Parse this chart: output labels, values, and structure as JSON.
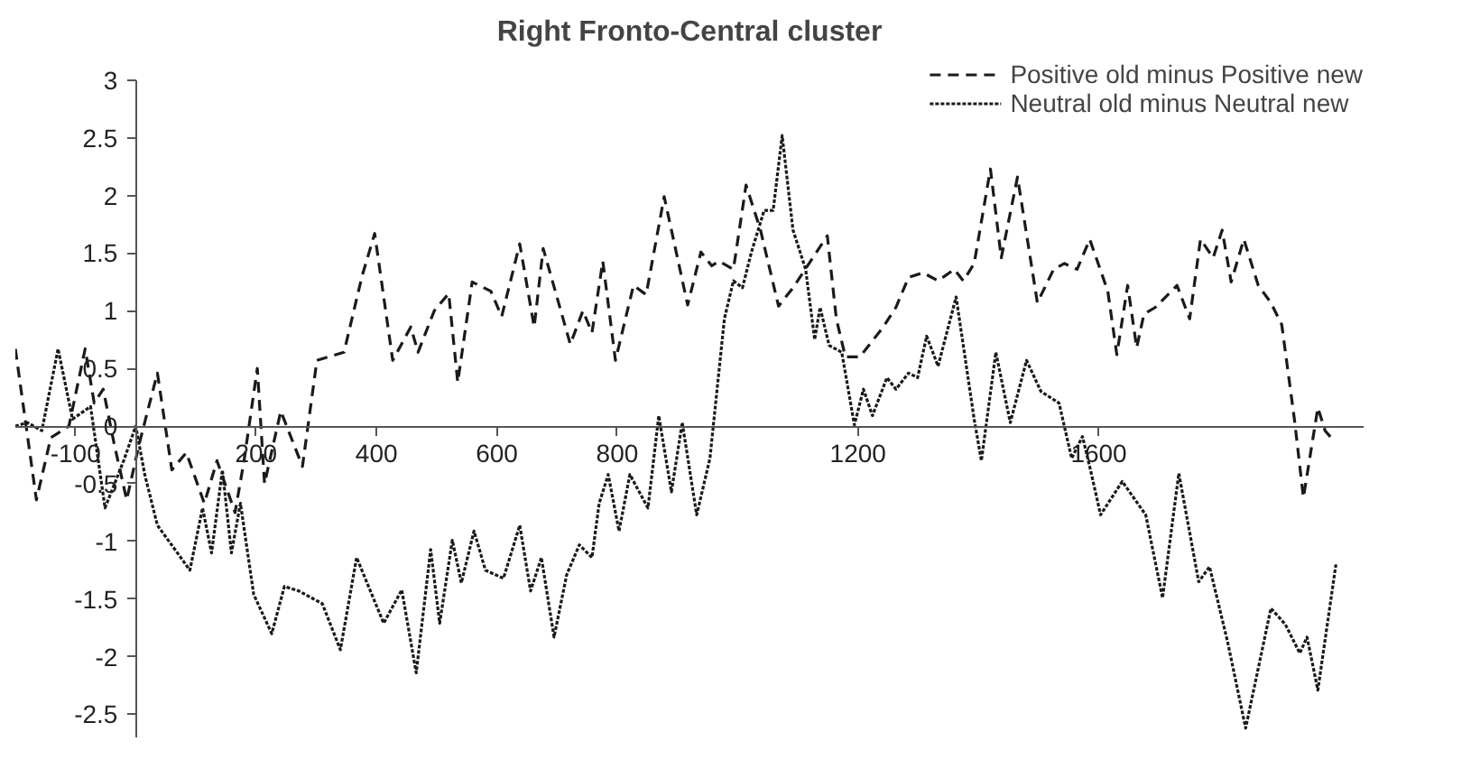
{
  "chart_data": {
    "type": "line",
    "title": "Right Fronto-Central cluster",
    "xlim": [
      -200,
      2040
    ],
    "ylim": [
      -2.7,
      3
    ],
    "xticks": [
      -100,
      200,
      400,
      600,
      800,
      1200,
      1600
    ],
    "yticks": [
      -2.5,
      -2,
      -1.5,
      -1,
      -0.5,
      0,
      0.5,
      1,
      1.5,
      2,
      2.5,
      3
    ],
    "grid": false,
    "legend": "top right",
    "series": [
      {
        "name": "Positive old minus Positive new",
        "color": "#1a1a1a",
        "line_style": "dashed",
        "x": [
          -200,
          -165,
          -141,
          -111,
          -84,
          -69,
          -54,
          -36,
          -15,
          6,
          36,
          60,
          84,
          114,
          135,
          165,
          180,
          202,
          214,
          241,
          277,
          301,
          346,
          376,
          397,
          427,
          457,
          469,
          496,
          520,
          535,
          559,
          590,
          608,
          638,
          662,
          677,
          722,
          743,
          758,
          776,
          797,
          827,
          848,
          878,
          917,
          939,
          957,
          969,
          993,
          1014,
          1038,
          1068,
          1092,
          1149,
          1164,
          1179,
          1203,
          1242,
          1263,
          1284,
          1308,
          1333,
          1360,
          1375,
          1393,
          1420,
          1438,
          1465,
          1498,
          1525,
          1543,
          1564,
          1585,
          1615,
          1630,
          1648,
          1663,
          1675,
          1694,
          1730,
          1751,
          1769,
          1790,
          1805,
          1820,
          1841,
          1865,
          1886,
          1904,
          1925,
          1940,
          1964,
          1976,
          1991
        ],
        "values": [
          0.67,
          -0.64,
          -0.1,
          0.0,
          0.67,
          0.2,
          0.32,
          -0.15,
          -0.64,
          -0.15,
          0.46,
          -0.38,
          -0.23,
          -0.67,
          -0.3,
          -0.75,
          -0.3,
          0.5,
          -0.5,
          0.13,
          -0.35,
          0.57,
          0.64,
          1.3,
          1.67,
          0.57,
          0.86,
          0.64,
          1.0,
          1.15,
          0.38,
          1.25,
          1.17,
          0.95,
          1.58,
          0.86,
          1.54,
          0.71,
          1.0,
          0.81,
          1.43,
          0.57,
          1.22,
          1.14,
          1.99,
          1.05,
          1.51,
          1.39,
          1.43,
          1.36,
          2.09,
          1.7,
          1.04,
          1.2,
          1.65,
          0.93,
          0.6,
          0.6,
          0.86,
          1.03,
          1.29,
          1.33,
          1.26,
          1.36,
          1.26,
          1.41,
          2.23,
          1.46,
          2.16,
          1.07,
          1.36,
          1.41,
          1.36,
          1.62,
          1.17,
          0.62,
          1.22,
          0.68,
          0.97,
          1.03,
          1.22,
          0.93,
          1.62,
          1.46,
          1.7,
          1.25,
          1.62,
          1.22,
          1.07,
          0.88,
          0.06,
          -0.62,
          0.16,
          -0.04,
          -0.13
        ]
      },
      {
        "name": "Neutral old minus Neutral new",
        "color": "#1a1a1a",
        "line_style": "dotted",
        "x": [
          -200,
          -180,
          -156,
          -129,
          -105,
          -75,
          -51,
          -20,
          0,
          15,
          36,
          90,
          111,
          126,
          144,
          159,
          174,
          196,
          226,
          247,
          271,
          310,
          340,
          367,
          412,
          442,
          466,
          490,
          505,
          526,
          541,
          562,
          581,
          611,
          638,
          656,
          674,
          695,
          716,
          737,
          758,
          770,
          785,
          803,
          821,
          851,
          869,
          890,
          908,
          932,
          954,
          978,
          993,
          1008,
          1023,
          1044,
          1059,
          1074,
          1092,
          1113,
          1128,
          1137,
          1152,
          1173,
          1194,
          1209,
          1224,
          1248,
          1263,
          1284,
          1299,
          1314,
          1333,
          1363,
          1393,
          1405,
          1429,
          1453,
          1480,
          1504,
          1534,
          1555,
          1573,
          1588,
          1603,
          1639,
          1678,
          1706,
          1733,
          1766,
          1784,
          1814,
          1844,
          1886,
          1910,
          1934,
          1946,
          1964,
          1994
        ],
        "values": [
          0,
          0.03,
          -0.04,
          0.67,
          0.06,
          0.17,
          -0.71,
          -0.3,
          0,
          -0.42,
          -0.86,
          -1.25,
          -0.71,
          -1.1,
          -0.38,
          -1.1,
          -0.67,
          -1.46,
          -1.8,
          -1.39,
          -1.43,
          -1.54,
          -1.94,
          -1.14,
          -1.71,
          -1.42,
          -2.14,
          -1.07,
          -1.71,
          -0.99,
          -1.36,
          -0.91,
          -1.25,
          -1.32,
          -0.86,
          -1.43,
          -1.14,
          -1.83,
          -1.29,
          -1.03,
          -1.14,
          -0.67,
          -0.42,
          -0.91,
          -0.42,
          -0.71,
          0.09,
          -0.57,
          0.03,
          -0.77,
          -0.28,
          0.93,
          1.26,
          1.2,
          1.51,
          1.87,
          1.87,
          2.52,
          1.7,
          1.36,
          0.75,
          1.03,
          0.7,
          0.64,
          0.01,
          0.32,
          0.09,
          0.42,
          0.32,
          0.46,
          0.42,
          0.78,
          0.52,
          1.12,
          0.06,
          -0.3,
          0.64,
          0.03,
          0.57,
          0.3,
          0.2,
          -0.28,
          -0.09,
          -0.42,
          -0.77,
          -0.48,
          -0.77,
          -1.49,
          -0.41,
          -1.35,
          -1.22,
          -1.87,
          -2.62,
          -1.58,
          -1.72,
          -1.97,
          -1.83,
          -2.29,
          -1.2
        ]
      }
    ]
  }
}
